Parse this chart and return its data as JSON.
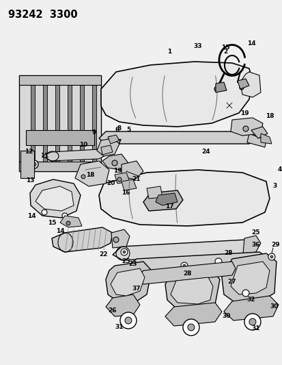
{
  "title": "93242  3300",
  "bg_color": "#f0f0f0",
  "fig_width": 4.14,
  "fig_height": 5.33,
  "dpi": 100,
  "lc": "black",
  "fc_seat": "#e8e8e8",
  "fc_frame": "#d0d0d0",
  "fc_part": "#cccccc",
  "fc_dark": "#aaaaaa",
  "label_fontsize": 6.5,
  "title_fontsize": 10.5
}
